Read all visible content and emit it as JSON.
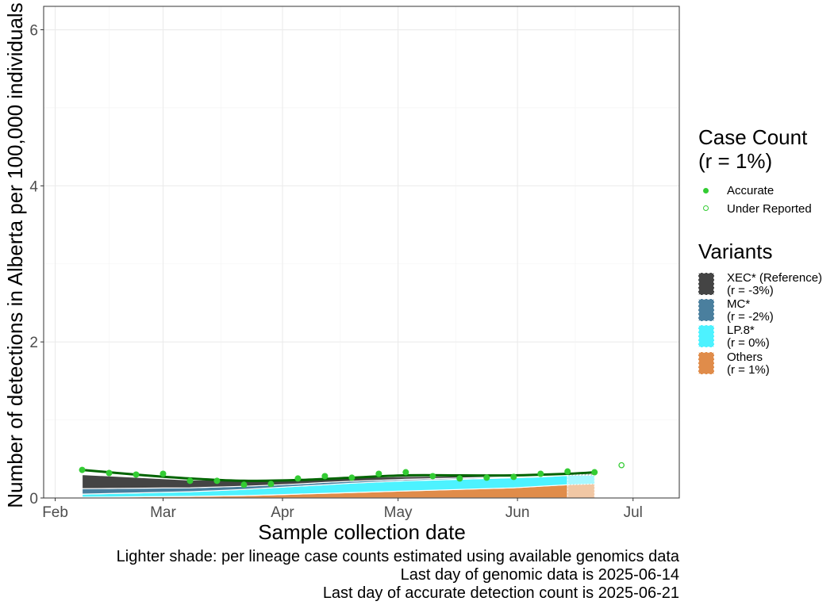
{
  "chart_data": {
    "type": "area",
    "ylabel": "Number of detections in Alberta per 100,000 individuals",
    "xlabel": "Sample collection date",
    "ylim": [
      0,
      6.3
    ],
    "xlim": [
      "2025-01-29",
      "2025-07-13"
    ],
    "y_ticks": [
      0,
      2,
      4,
      6
    ],
    "y_tick_labels": [
      "0",
      "2",
      "4",
      "6"
    ],
    "x_ticks": [
      "2025-02-01",
      "2025-03-01",
      "2025-04-01",
      "2025-05-01",
      "2025-06-01",
      "2025-07-01"
    ],
    "x_tick_labels": [
      "Feb",
      "Mar",
      "Apr",
      "May",
      "Jun",
      "Jul"
    ],
    "grid": true,
    "legend_position": "right",
    "genomic_cutoff": "2025-06-14",
    "dates": [
      "2025-02-08",
      "2025-02-15",
      "2025-02-22",
      "2025-03-01",
      "2025-03-08",
      "2025-03-15",
      "2025-03-22",
      "2025-03-29",
      "2025-04-05",
      "2025-04-12",
      "2025-04-19",
      "2025-04-26",
      "2025-05-03",
      "2025-05-10",
      "2025-05-17",
      "2025-05-24",
      "2025-05-31",
      "2025-06-07",
      "2025-06-14",
      "2025-06-21"
    ],
    "series": [
      {
        "name": "XEC* (Reference)",
        "values": [
          0.18,
          0.16,
          0.14,
          0.12,
          0.1,
          0.09,
          0.08,
          0.07,
          0.06,
          0.05,
          0.045,
          0.04,
          0.035,
          0.03,
          0.025,
          0.022,
          0.02,
          0.018,
          0.015,
          0.013
        ],
        "color": "#444444"
      },
      {
        "name": "MC*",
        "values": [
          0.07,
          0.065,
          0.06,
          0.055,
          0.05,
          0.045,
          0.04,
          0.035,
          0.03,
          0.03,
          0.025,
          0.022,
          0.02,
          0.018,
          0.016,
          0.014,
          0.012,
          0.011,
          0.01,
          0.009
        ],
        "color": "#4a7f9e"
      },
      {
        "name": "LP.8*",
        "values": [
          0.04,
          0.045,
          0.05,
          0.055,
          0.06,
          0.07,
          0.08,
          0.09,
          0.1,
          0.11,
          0.12,
          0.125,
          0.13,
          0.13,
          0.13,
          0.13,
          0.13,
          0.12,
          0.12,
          0.11
        ],
        "color": "#4df2ff"
      },
      {
        "name": "Others",
        "values": [
          0.01,
          0.012,
          0.015,
          0.018,
          0.02,
          0.025,
          0.03,
          0.04,
          0.05,
          0.06,
          0.07,
          0.08,
          0.09,
          0.1,
          0.11,
          0.12,
          0.13,
          0.15,
          0.17,
          0.18
        ],
        "color": "#e08c4a"
      }
    ],
    "points_accurate": [
      [
        "2025-02-08",
        0.36
      ],
      [
        "2025-02-15",
        0.32
      ],
      [
        "2025-02-22",
        0.3
      ],
      [
        "2025-03-01",
        0.31
      ],
      [
        "2025-03-08",
        0.22
      ],
      [
        "2025-03-15",
        0.22
      ],
      [
        "2025-03-22",
        0.17
      ],
      [
        "2025-03-29",
        0.18
      ],
      [
        "2025-04-05",
        0.25
      ],
      [
        "2025-04-12",
        0.28
      ],
      [
        "2025-04-19",
        0.26
      ],
      [
        "2025-04-26",
        0.31
      ],
      [
        "2025-05-03",
        0.33
      ],
      [
        "2025-05-10",
        0.28
      ],
      [
        "2025-05-17",
        0.25
      ],
      [
        "2025-05-24",
        0.26
      ],
      [
        "2025-05-31",
        0.27
      ],
      [
        "2025-06-07",
        0.31
      ],
      [
        "2025-06-14",
        0.34
      ],
      [
        "2025-06-21",
        0.33
      ]
    ],
    "points_under_reported": [
      [
        "2025-06-28",
        0.42
      ]
    ],
    "trend": [
      [
        "2025-02-08",
        0.36
      ],
      [
        "2025-02-22",
        0.3
      ],
      [
        "2025-03-08",
        0.25
      ],
      [
        "2025-03-22",
        0.22
      ],
      [
        "2025-04-05",
        0.23
      ],
      [
        "2025-04-19",
        0.26
      ],
      [
        "2025-05-03",
        0.29
      ],
      [
        "2025-05-17",
        0.29
      ],
      [
        "2025-05-31",
        0.29
      ],
      [
        "2025-06-14",
        0.31
      ],
      [
        "2025-06-21",
        0.33
      ]
    ],
    "colors": {
      "accurate": "#33cc33",
      "trend": "#006400",
      "light_xec": "#9c9c9c",
      "light_mc": "#a7c2d1",
      "light_lp8": "#a8f7ff",
      "light_others": "#f1c7a4"
    }
  },
  "legend": {
    "case_count_title_1": "Case Count",
    "case_count_title_2": "(r = 1%)",
    "accurate_label": "Accurate",
    "under_reported_label": "Under Reported",
    "variants_title": "Variants",
    "variants": [
      {
        "name": "XEC* (Reference)",
        "rate": "(r = -3%)",
        "color": "#444444"
      },
      {
        "name": "MC*",
        "rate": "(r = -2%)",
        "color": "#4a7f9e"
      },
      {
        "name": "LP.8*",
        "rate": "(r = 0%)",
        "color": "#4df2ff"
      },
      {
        "name": "Others",
        "rate": "(r = 1%)",
        "color": "#e08c4a"
      }
    ]
  },
  "caption": {
    "line1": "Lighter shade: per lineage case counts estimated using available genomics data",
    "line2": "Last day of genomic data is 2025-06-14",
    "line3": "Last day of accurate detection count is 2025-06-21"
  }
}
